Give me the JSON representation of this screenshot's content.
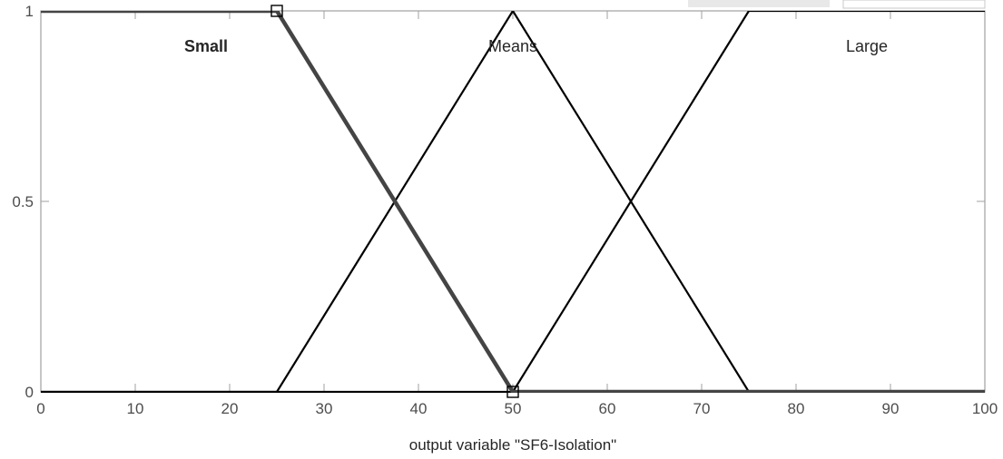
{
  "chart_data": {
    "type": "line",
    "title": "",
    "xlabel": "output variable \"SF6-Isolation\"",
    "ylabel": "",
    "xlim": [
      0,
      100
    ],
    "ylim": [
      0,
      1
    ],
    "x_ticks": [
      0,
      10,
      20,
      30,
      40,
      50,
      60,
      70,
      80,
      90,
      100
    ],
    "y_ticks": [
      0,
      0.5,
      1
    ],
    "x_tick_labels": [
      "0",
      "10",
      "20",
      "30",
      "40",
      "50",
      "60",
      "70",
      "80",
      "90",
      "100"
    ],
    "y_tick_labels": [
      "0",
      "0.5",
      "1"
    ],
    "grid": false,
    "selected_series": "Small",
    "series": [
      {
        "name": "Small",
        "x": [
          0,
          25,
          50,
          100
        ],
        "y": [
          1,
          1,
          0,
          0
        ],
        "label_x": 17.5
      },
      {
        "name": "Means",
        "x": [
          0,
          25,
          50,
          75,
          100
        ],
        "y": [
          0,
          0,
          1,
          0,
          0
        ],
        "label_x": 50
      },
      {
        "name": "Large",
        "x": [
          0,
          50,
          75,
          100
        ],
        "y": [
          0,
          0,
          1,
          1
        ],
        "label_x": 87.5
      }
    ],
    "colors": {
      "line": "#000000",
      "selected_line": "#444444",
      "axis": "#a0a0a0",
      "tick_text": "#4d4d4d"
    }
  }
}
